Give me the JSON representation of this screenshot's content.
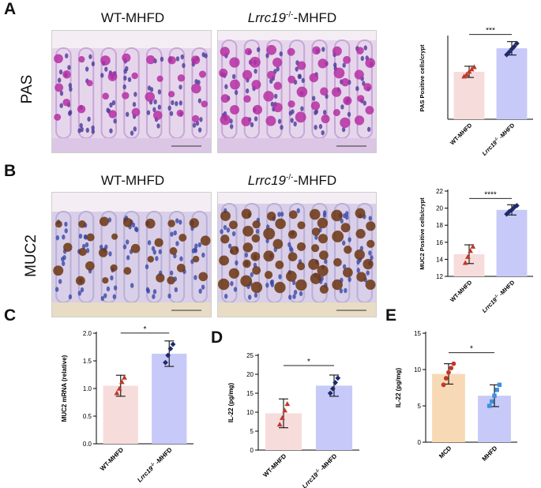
{
  "panels": {
    "A": {
      "letter": "A",
      "row_label": "PAS",
      "image_titles": {
        "wt": "WT-MHFD",
        "ko_gene": "Lrrc19",
        "ko_sup": "-/-",
        "ko_rest": "-MHFD"
      }
    },
    "B": {
      "letter": "B",
      "row_label": "MUC2",
      "image_titles": {
        "wt": "WT-MHFD",
        "ko_gene": "Lrrc19",
        "ko_sup": "-/-",
        "ko_rest": "-MHFD"
      }
    },
    "C": {
      "letter": "C"
    },
    "D": {
      "letter": "D"
    },
    "E": {
      "letter": "E"
    }
  },
  "colors": {
    "pas_magenta": "#b52fa3",
    "pas_background": "#e6d6ec",
    "muc2_brown": "#6b3510",
    "muc2_background": "#d9cfe8",
    "bar_pink": "#f7dcdc",
    "bar_blue": "#c7c9f8",
    "bar_orange": "#f8d9b5",
    "marker_red": "#c0392b",
    "marker_navy": "#1f2a6b",
    "marker_blue": "#3f8fdc"
  },
  "chart_data": [
    {
      "id": "A",
      "type": "bar",
      "categories": [
        "WT-MHFD",
        "Lrrc19-/--MHFD"
      ],
      "category_labels": [
        {
          "main": "WT-MHFD",
          "it": "",
          "sup": "",
          "rest": ""
        },
        {
          "main": "",
          "it": "Lrrc19",
          "sup": "-/-",
          "rest": " -MHFD"
        }
      ],
      "values": [
        12.7,
        19.0
      ],
      "errors": [
        1.5,
        1.8
      ],
      "points": [
        [
          11.5,
          12.0,
          12.8,
          13.4,
          14.0
        ],
        [
          17.3,
          18.0,
          18.8,
          19.5,
          20.3
        ]
      ],
      "markers": [
        "triangle",
        "diamond"
      ],
      "ylabel": "PAS Positive cells/crypt",
      "ylim": [
        0,
        22
      ],
      "ticks": [],
      "significance": "***",
      "bar_colors": [
        "#f7dcdc",
        "#c7c9f8"
      ],
      "marker_colors": [
        "#c0392b",
        "#1f2a6b"
      ]
    },
    {
      "id": "B",
      "type": "bar",
      "categories": [
        "WT-MHFD",
        "Lrrc19-/--MHFD"
      ],
      "category_labels": [
        {
          "main": "WT-MHFD",
          "it": "",
          "sup": "",
          "rest": ""
        },
        {
          "main": "",
          "it": "Lrrc19",
          "sup": "-/-",
          "rest": " -MHFD"
        }
      ],
      "values": [
        14.6,
        19.8
      ],
      "errors": [
        1.1,
        0.6
      ],
      "points": [
        [
          13.6,
          14.3,
          15.0,
          15.5
        ],
        [
          19.3,
          19.6,
          19.8,
          20.1,
          20.3
        ]
      ],
      "markers": [
        "triangle",
        "diamond"
      ],
      "ylabel": "MUC2 Positive cells/crypt",
      "ylim": [
        12,
        22
      ],
      "ticks": [
        12,
        14,
        16,
        18,
        20,
        22
      ],
      "significance": "****",
      "bar_colors": [
        "#f7dcdc",
        "#c7c9f8"
      ],
      "marker_colors": [
        "#c0392b",
        "#1f2a6b"
      ]
    },
    {
      "id": "C",
      "type": "bar",
      "categories": [
        "WT-MHFD",
        "Lrrc19-/--MHFD"
      ],
      "category_labels": [
        {
          "main": "WT-MHFD",
          "it": "",
          "sup": "",
          "rest": ""
        },
        {
          "main": "",
          "it": "Lrrc19",
          "sup": "-/-",
          "rest": " -MHFD"
        }
      ],
      "values": [
        1.05,
        1.63
      ],
      "errors": [
        0.19,
        0.23
      ],
      "points": [
        [
          0.92,
          1.0,
          1.12,
          1.2
        ],
        [
          1.47,
          1.6,
          1.72,
          1.8
        ]
      ],
      "markers": [
        "triangle",
        "diamond"
      ],
      "ylabel": "MUC2 mRNA (relative)",
      "ylim": [
        0,
        2.0
      ],
      "ticks": [
        0.0,
        0.5,
        1.0,
        1.5,
        2.0
      ],
      "tick_labels": [
        "0.0",
        "0.5",
        "1.0",
        "1.5",
        "2.0"
      ],
      "significance": "*",
      "bar_colors": [
        "#f7dcdc",
        "#c7c9f8"
      ],
      "marker_colors": [
        "#c0392b",
        "#1f2a6b"
      ]
    },
    {
      "id": "D",
      "type": "bar",
      "categories": [
        "WT-MHFD",
        "Lrrc19-/--MHFD"
      ],
      "category_labels": [
        {
          "main": "WT-MHFD",
          "it": "",
          "sup": "",
          "rest": ""
        },
        {
          "main": "",
          "it": "Lrrc19",
          "sup": "-/-",
          "rest": " -MHFD"
        }
      ],
      "values": [
        9.7,
        17.0
      ],
      "errors": [
        3.8,
        2.8
      ],
      "points": [
        [
          6.8,
          8.5,
          10.5,
          12.2
        ],
        [
          15.0,
          16.2,
          17.8,
          19.0
        ]
      ],
      "markers": [
        "triangle",
        "diamond"
      ],
      "ylabel": "IL-22 (pg/mg)",
      "ylim": [
        0,
        25
      ],
      "ticks": [
        0,
        5,
        10,
        15,
        20,
        25
      ],
      "tick_labels": [
        "0",
        "5",
        "10",
        "15",
        "20",
        "25"
      ],
      "significance": "*",
      "bar_colors": [
        "#f7dcdc",
        "#c7c9f8"
      ],
      "marker_colors": [
        "#c0392b",
        "#1f2a6b"
      ]
    },
    {
      "id": "E",
      "type": "bar",
      "categories": [
        "MCD",
        "MHFD"
      ],
      "category_labels": [
        {
          "main": "MCD",
          "it": "",
          "sup": "",
          "rest": ""
        },
        {
          "main": "MHFD",
          "it": "",
          "sup": "",
          "rest": ""
        }
      ],
      "values": [
        9.4,
        6.4
      ],
      "errors": [
        1.4,
        1.5
      ],
      "points": [
        [
          7.9,
          8.8,
          9.6,
          10.2,
          10.8
        ],
        [
          5.0,
          5.6,
          6.4,
          7.2,
          7.9
        ]
      ],
      "markers": [
        "circle",
        "square"
      ],
      "ylabel": "IL-22 (pg/mg)",
      "ylim": [
        0,
        15
      ],
      "ticks": [
        0,
        5,
        10,
        15
      ],
      "tick_labels": [
        "0",
        "5",
        "10",
        "15"
      ],
      "significance": "*",
      "bar_colors": [
        "#f8d9b5",
        "#c7c9f8"
      ],
      "marker_colors": [
        "#c0392b",
        "#3f8fdc"
      ]
    }
  ]
}
